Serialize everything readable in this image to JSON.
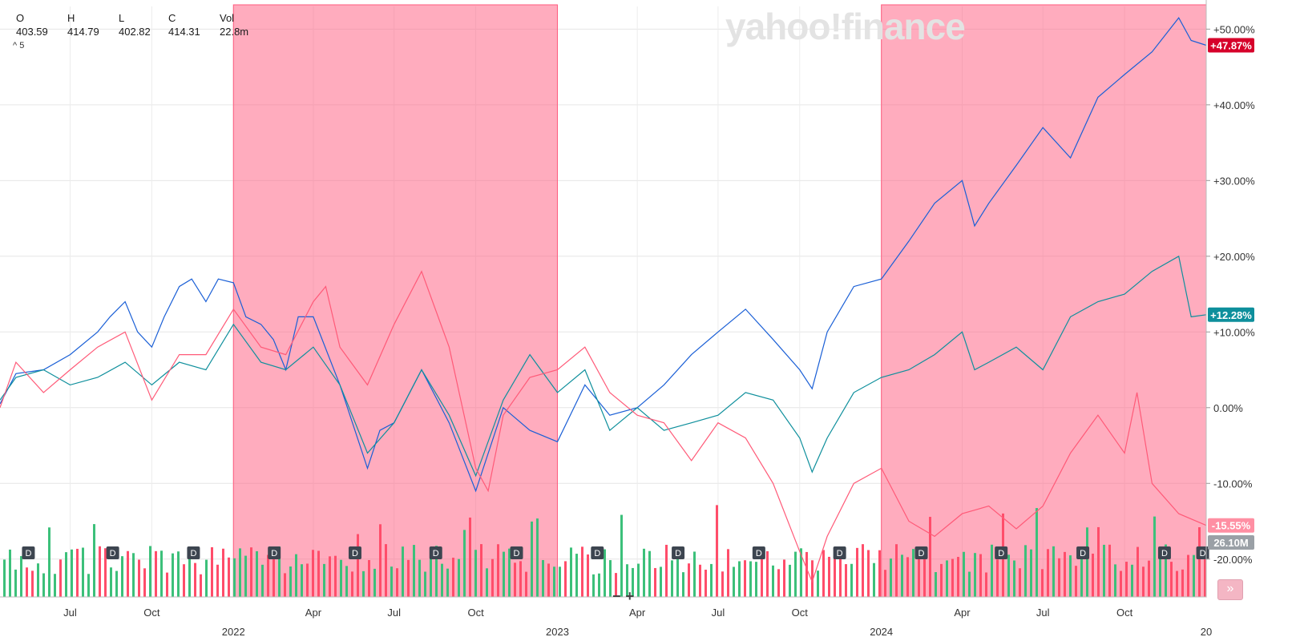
{
  "brand": "yahoo!finance",
  "ohlc": [
    {
      "label": "O",
      "value": "403.59"
    },
    {
      "label": "H",
      "value": "414.79"
    },
    {
      "label": "L",
      "value": "402.82"
    },
    {
      "label": "C",
      "value": "414.31"
    },
    {
      "label": "Vol",
      "value": "22.8m"
    }
  ],
  "expand_label": "^ 5",
  "zoom": {
    "minus": "−",
    "plus": "+"
  },
  "scroll_icon": "double-chevron-right-icon",
  "chart_data": {
    "type": "line",
    "title": "",
    "y_ticks": [
      "+50.00%",
      "+40.00%",
      "+30.00%",
      "+20.00%",
      "+10.00%",
      "0.00%",
      "-10.00%",
      "-20.00%"
    ],
    "x_ticks": [
      {
        "label": "Jul",
        "date": "2021-07-01"
      },
      {
        "label": "Oct",
        "date": "2021-10-01"
      },
      {
        "label": "Apr",
        "date": "2022-04-01"
      },
      {
        "label": "Jul",
        "date": "2022-07-01"
      },
      {
        "label": "Oct",
        "date": "2022-10-01"
      },
      {
        "label": "Apr",
        "date": "2023-04-01"
      },
      {
        "label": "Jul",
        "date": "2023-07-01"
      },
      {
        "label": "Oct",
        "date": "2023-10-01"
      },
      {
        "label": "Apr",
        "date": "2024-04-01"
      },
      {
        "label": "Jul",
        "date": "2024-07-01"
      },
      {
        "label": "Oct",
        "date": "2024-10-01"
      }
    ],
    "year_ticks": [
      {
        "label": "2022",
        "date": "2022-01-01"
      },
      {
        "label": "2023",
        "date": "2023-01-01"
      },
      {
        "label": "2024",
        "date": "2024-01-01"
      },
      {
        "label": "20",
        "date": "2025-01-01"
      }
    ],
    "ylim": [
      -25,
      53
    ],
    "xlim": [
      "2021-04-13",
      "2025-01-01"
    ],
    "shaded_ranges": [
      [
        "2022-01-01",
        "2023-01-01"
      ],
      [
        "2024-01-01",
        "2025-01-01"
      ]
    ],
    "series": [
      {
        "color": "#1a5fd6",
        "last_value": "+47.87%",
        "tag_color": "#d6002a",
        "points": [
          [
            "2021-04-13",
            0.5
          ],
          [
            "2021-05-01",
            4.5
          ],
          [
            "2021-06-01",
            5
          ],
          [
            "2021-07-01",
            7
          ],
          [
            "2021-08-01",
            10
          ],
          [
            "2021-08-15",
            12
          ],
          [
            "2021-09-01",
            14
          ],
          [
            "2021-09-15",
            10
          ],
          [
            "2021-10-01",
            8
          ],
          [
            "2021-10-15",
            12
          ],
          [
            "2021-11-01",
            16
          ],
          [
            "2021-11-15",
            17
          ],
          [
            "2021-12-01",
            14
          ],
          [
            "2021-12-15",
            17
          ],
          [
            "2022-01-01",
            16.5
          ],
          [
            "2022-01-15",
            12
          ],
          [
            "2022-02-01",
            11
          ],
          [
            "2022-02-15",
            9
          ],
          [
            "2022-03-01",
            5
          ],
          [
            "2022-03-15",
            12
          ],
          [
            "2022-04-01",
            12
          ],
          [
            "2022-05-01",
            3
          ],
          [
            "2022-06-01",
            -8
          ],
          [
            "2022-06-15",
            -3
          ],
          [
            "2022-07-01",
            -2
          ],
          [
            "2022-08-01",
            5
          ],
          [
            "2022-09-01",
            -2
          ],
          [
            "2022-10-01",
            -11
          ],
          [
            "2022-11-01",
            0
          ],
          [
            "2022-12-01",
            -3
          ],
          [
            "2023-01-01",
            -4.5
          ],
          [
            "2023-02-01",
            3
          ],
          [
            "2023-03-01",
            -1
          ],
          [
            "2023-04-01",
            0
          ],
          [
            "2023-05-01",
            3
          ],
          [
            "2023-06-01",
            7
          ],
          [
            "2023-07-01",
            10
          ],
          [
            "2023-08-01",
            13
          ],
          [
            "2023-09-01",
            9
          ],
          [
            "2023-10-01",
            5
          ],
          [
            "2023-10-15",
            2.5
          ],
          [
            "2023-11-01",
            10
          ],
          [
            "2023-12-01",
            16
          ],
          [
            "2024-01-01",
            17
          ],
          [
            "2024-02-01",
            22
          ],
          [
            "2024-03-01",
            27
          ],
          [
            "2024-04-01",
            30
          ],
          [
            "2024-04-15",
            24
          ],
          [
            "2024-05-01",
            27
          ],
          [
            "2024-06-01",
            32
          ],
          [
            "2024-07-01",
            37
          ],
          [
            "2024-08-01",
            33
          ],
          [
            "2024-09-01",
            41
          ],
          [
            "2024-10-01",
            44
          ],
          [
            "2024-11-01",
            47
          ],
          [
            "2024-12-01",
            51.5
          ],
          [
            "2024-12-15",
            48.5
          ],
          [
            "2025-01-01",
            47.87
          ]
        ]
      },
      {
        "color": "#0e8f9c",
        "last_value": "+12.28%",
        "tag_color": "#0e8f9c",
        "points": [
          [
            "2021-04-13",
            1
          ],
          [
            "2021-05-01",
            4
          ],
          [
            "2021-06-01",
            5
          ],
          [
            "2021-07-01",
            3
          ],
          [
            "2021-08-01",
            4
          ],
          [
            "2021-09-01",
            6
          ],
          [
            "2021-10-01",
            3
          ],
          [
            "2021-11-01",
            6
          ],
          [
            "2021-12-01",
            5
          ],
          [
            "2022-01-01",
            11
          ],
          [
            "2022-02-01",
            6
          ],
          [
            "2022-03-01",
            5
          ],
          [
            "2022-04-01",
            8
          ],
          [
            "2022-05-01",
            3
          ],
          [
            "2022-06-01",
            -6
          ],
          [
            "2022-07-01",
            -2
          ],
          [
            "2022-08-01",
            5
          ],
          [
            "2022-09-01",
            -1
          ],
          [
            "2022-10-01",
            -9
          ],
          [
            "2022-11-01",
            1
          ],
          [
            "2022-12-01",
            7
          ],
          [
            "2023-01-01",
            2
          ],
          [
            "2023-02-01",
            5
          ],
          [
            "2023-03-01",
            -3
          ],
          [
            "2023-04-01",
            0
          ],
          [
            "2023-05-01",
            -3
          ],
          [
            "2023-06-01",
            -2
          ],
          [
            "2023-07-01",
            -1
          ],
          [
            "2023-08-01",
            2
          ],
          [
            "2023-09-01",
            1
          ],
          [
            "2023-10-01",
            -4
          ],
          [
            "2023-10-15",
            -8.5
          ],
          [
            "2023-11-01",
            -4
          ],
          [
            "2023-12-01",
            2
          ],
          [
            "2024-01-01",
            4
          ],
          [
            "2024-02-01",
            5
          ],
          [
            "2024-03-01",
            7
          ],
          [
            "2024-04-01",
            10
          ],
          [
            "2024-04-15",
            5
          ],
          [
            "2024-05-01",
            6
          ],
          [
            "2024-06-01",
            8
          ],
          [
            "2024-07-01",
            5
          ],
          [
            "2024-08-01",
            12
          ],
          [
            "2024-09-01",
            14
          ],
          [
            "2024-10-01",
            15
          ],
          [
            "2024-11-01",
            18
          ],
          [
            "2024-12-01",
            20
          ],
          [
            "2024-12-15",
            12
          ],
          [
            "2025-01-01",
            12.28
          ]
        ]
      },
      {
        "color": "#ff5a78",
        "last_value": "-15.55%",
        "tag_color": "#ff8fa3",
        "points": [
          [
            "2021-04-13",
            0
          ],
          [
            "2021-05-01",
            6
          ],
          [
            "2021-06-01",
            2
          ],
          [
            "2021-07-01",
            5
          ],
          [
            "2021-08-01",
            8
          ],
          [
            "2021-09-01",
            10
          ],
          [
            "2021-10-01",
            1
          ],
          [
            "2021-11-01",
            7
          ],
          [
            "2021-12-01",
            7
          ],
          [
            "2022-01-01",
            13
          ],
          [
            "2022-02-01",
            8
          ],
          [
            "2022-03-01",
            7
          ],
          [
            "2022-04-01",
            14
          ],
          [
            "2022-04-15",
            16
          ],
          [
            "2022-05-01",
            8
          ],
          [
            "2022-06-01",
            3
          ],
          [
            "2022-07-01",
            11
          ],
          [
            "2022-08-01",
            18
          ],
          [
            "2022-09-01",
            8
          ],
          [
            "2022-10-01",
            -8
          ],
          [
            "2022-10-15",
            -11
          ],
          [
            "2022-11-01",
            -1
          ],
          [
            "2022-12-01",
            4
          ],
          [
            "2023-01-01",
            5
          ],
          [
            "2023-02-01",
            8
          ],
          [
            "2023-03-01",
            2
          ],
          [
            "2023-04-01",
            -1
          ],
          [
            "2023-05-01",
            -2
          ],
          [
            "2023-06-01",
            -7
          ],
          [
            "2023-07-01",
            -2
          ],
          [
            "2023-08-01",
            -4
          ],
          [
            "2023-09-01",
            -10
          ],
          [
            "2023-10-01",
            -19
          ],
          [
            "2023-10-15",
            -23
          ],
          [
            "2023-11-01",
            -17
          ],
          [
            "2023-12-01",
            -10
          ],
          [
            "2024-01-01",
            -8
          ],
          [
            "2024-02-01",
            -15
          ],
          [
            "2024-03-01",
            -17
          ],
          [
            "2024-04-01",
            -14
          ],
          [
            "2024-05-01",
            -13
          ],
          [
            "2024-06-01",
            -16
          ],
          [
            "2024-07-01",
            -13
          ],
          [
            "2024-08-01",
            -6
          ],
          [
            "2024-09-01",
            -1
          ],
          [
            "2024-10-01",
            -6
          ],
          [
            "2024-10-15",
            2
          ],
          [
            "2024-11-01",
            -10
          ],
          [
            "2024-12-01",
            -14
          ],
          [
            "2025-01-01",
            -15.55
          ]
        ]
      }
    ],
    "volume": {
      "last_value": "26.10M"
    },
    "dividend_marker": "D",
    "dividend_dates": [
      "2021-05-15",
      "2021-08-18",
      "2021-11-17",
      "2022-02-16",
      "2022-05-18",
      "2022-08-17",
      "2022-11-16",
      "2023-02-15",
      "2023-05-17",
      "2023-08-16",
      "2023-11-15",
      "2024-02-15",
      "2024-05-15",
      "2024-08-15",
      "2024-11-15",
      "2024-12-28"
    ]
  }
}
